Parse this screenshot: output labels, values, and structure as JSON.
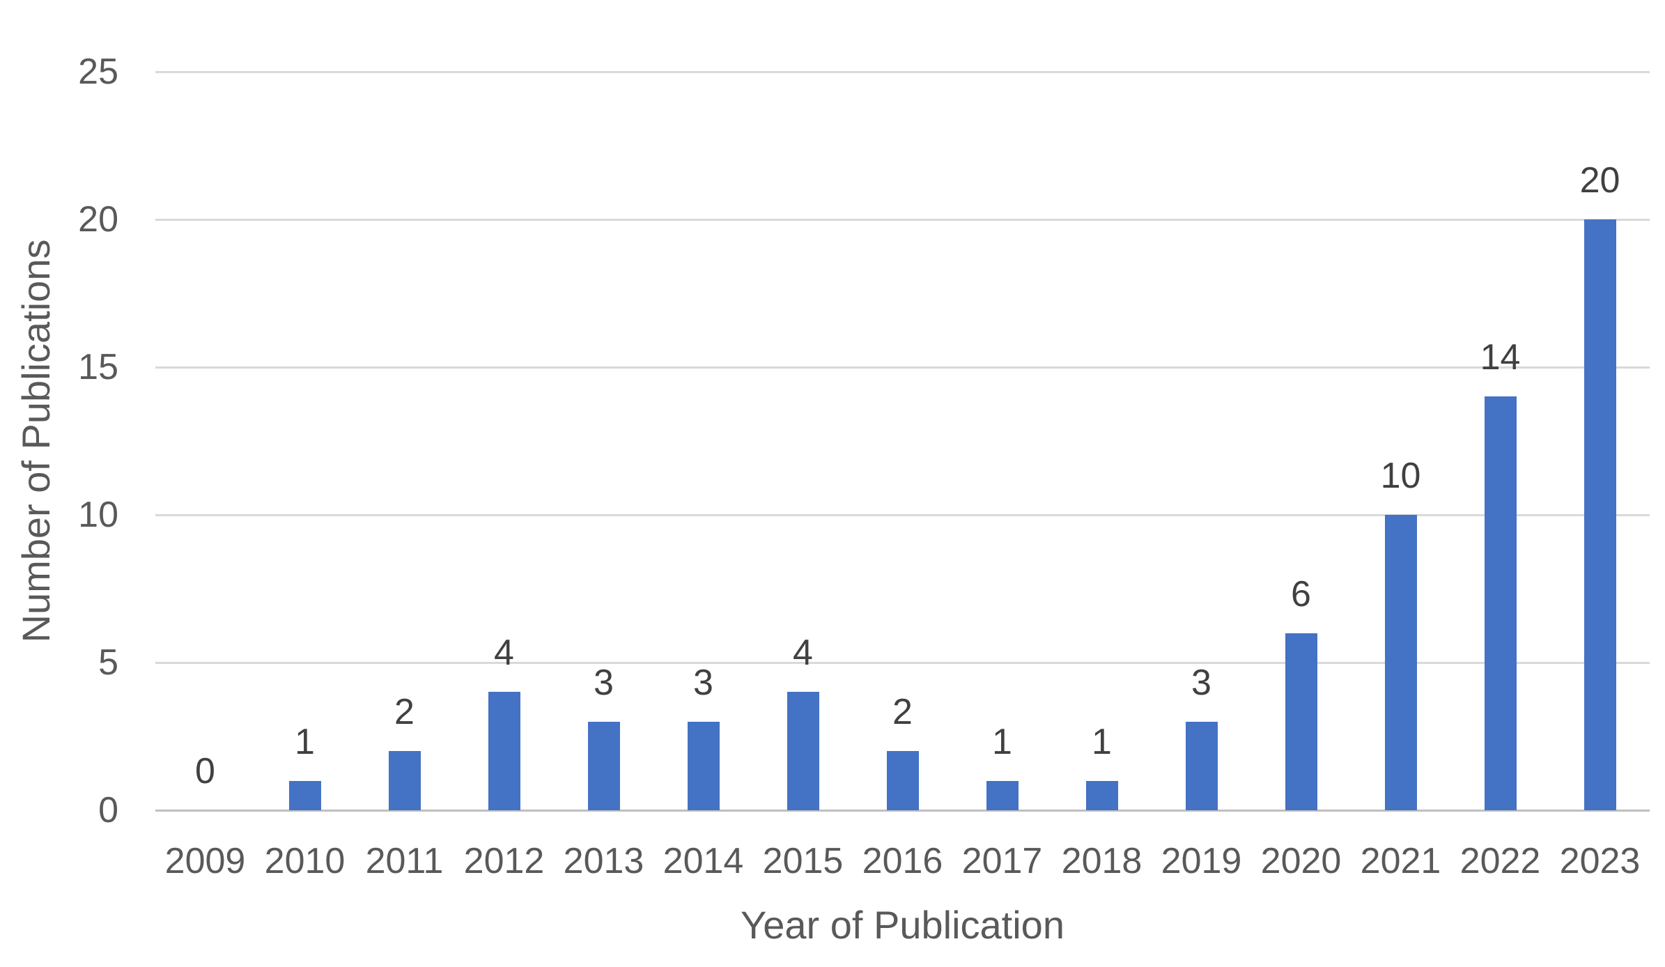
{
  "chart_data": {
    "type": "bar",
    "title": "",
    "categories": [
      "2009",
      "2010",
      "2011",
      "2012",
      "2013",
      "2014",
      "2015",
      "2016",
      "2017",
      "2018",
      "2019",
      "2020",
      "2021",
      "2022",
      "2023"
    ],
    "values": [
      0,
      1,
      2,
      4,
      3,
      3,
      4,
      2,
      1,
      1,
      3,
      6,
      10,
      14,
      20
    ],
    "data_labels": [
      "0",
      "1",
      "2",
      "4",
      "3",
      "3",
      "4",
      "2",
      "1",
      "1",
      "3",
      "6",
      "10",
      "14",
      "20"
    ],
    "xlabel": "Year of Publication",
    "ylabel": "Number of Publications",
    "ylim": [
      0,
      25
    ],
    "yticks": [
      0,
      5,
      10,
      15,
      20,
      25
    ],
    "ytick_labels": [
      "0",
      "5",
      "10",
      "15",
      "20",
      "25"
    ],
    "grid": true,
    "legend": "none",
    "style": {
      "bar_color": "#4472C4",
      "gridline_color": "#D9D9D9",
      "axis_line_color": "#BFBFBF",
      "tick_text_color": "#595959",
      "axis_title_color": "#595959",
      "value_label_color": "#404040",
      "background_color": "#FFFFFF"
    }
  }
}
